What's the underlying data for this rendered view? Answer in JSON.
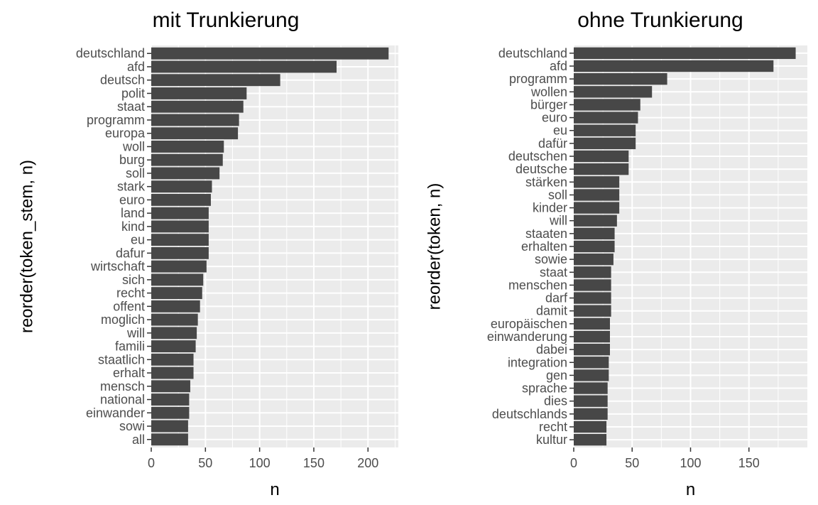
{
  "chart_data": [
    {
      "type": "bar",
      "orientation": "horizontal",
      "title": "mit Trunkierung",
      "xlabel": "n",
      "ylabel": "reorder(token_stem, n)",
      "xlim": [
        0,
        228
      ],
      "xticks": [
        0,
        50,
        100,
        150,
        200
      ],
      "grid": true,
      "categories": [
        "deutschland",
        "afd",
        "deutsch",
        "polit",
        "staat",
        "programm",
        "europa",
        "woll",
        "burg",
        "soll",
        "stark",
        "euro",
        "land",
        "kind",
        "eu",
        "dafur",
        "wirtschaft",
        "sich",
        "recht",
        "offent",
        "moglich",
        "will",
        "famili",
        "staatlich",
        "erhalt",
        "mensch",
        "national",
        "einwander",
        "sowi",
        "all"
      ],
      "values": [
        219,
        171,
        119,
        88,
        85,
        81,
        80,
        67,
        66,
        63,
        56,
        55,
        53,
        53,
        53,
        53,
        51,
        48,
        47,
        45,
        43,
        42,
        41,
        39,
        39,
        36,
        35,
        35,
        34,
        34
      ]
    },
    {
      "type": "bar",
      "orientation": "horizontal",
      "title": "ohne Trunkierung",
      "xlabel": "n",
      "ylabel": "reorder(token, n)",
      "xlim": [
        0,
        200
      ],
      "xticks": [
        0,
        50,
        100,
        150
      ],
      "grid": true,
      "categories": [
        "deutschland",
        "afd",
        "programm",
        "wollen",
        "bürger",
        "euro",
        "eu",
        "dafür",
        "deutschen",
        "deutsche",
        "stärken",
        "soll",
        "kinder",
        "will",
        "staaten",
        "erhalten",
        "sowie",
        "staat",
        "menschen",
        "darf",
        "damit",
        "europäischen",
        "einwanderung",
        "dabei",
        "integration",
        "gen",
        "sprache",
        "dies",
        "deutschlands",
        "recht",
        "kultur"
      ],
      "values": [
        190,
        171,
        80,
        67,
        57,
        55,
        53,
        53,
        47,
        47,
        39,
        39,
        39,
        37,
        35,
        35,
        34,
        32,
        32,
        32,
        32,
        31,
        31,
        31,
        30,
        30,
        29,
        29,
        29,
        28,
        28
      ]
    }
  ]
}
